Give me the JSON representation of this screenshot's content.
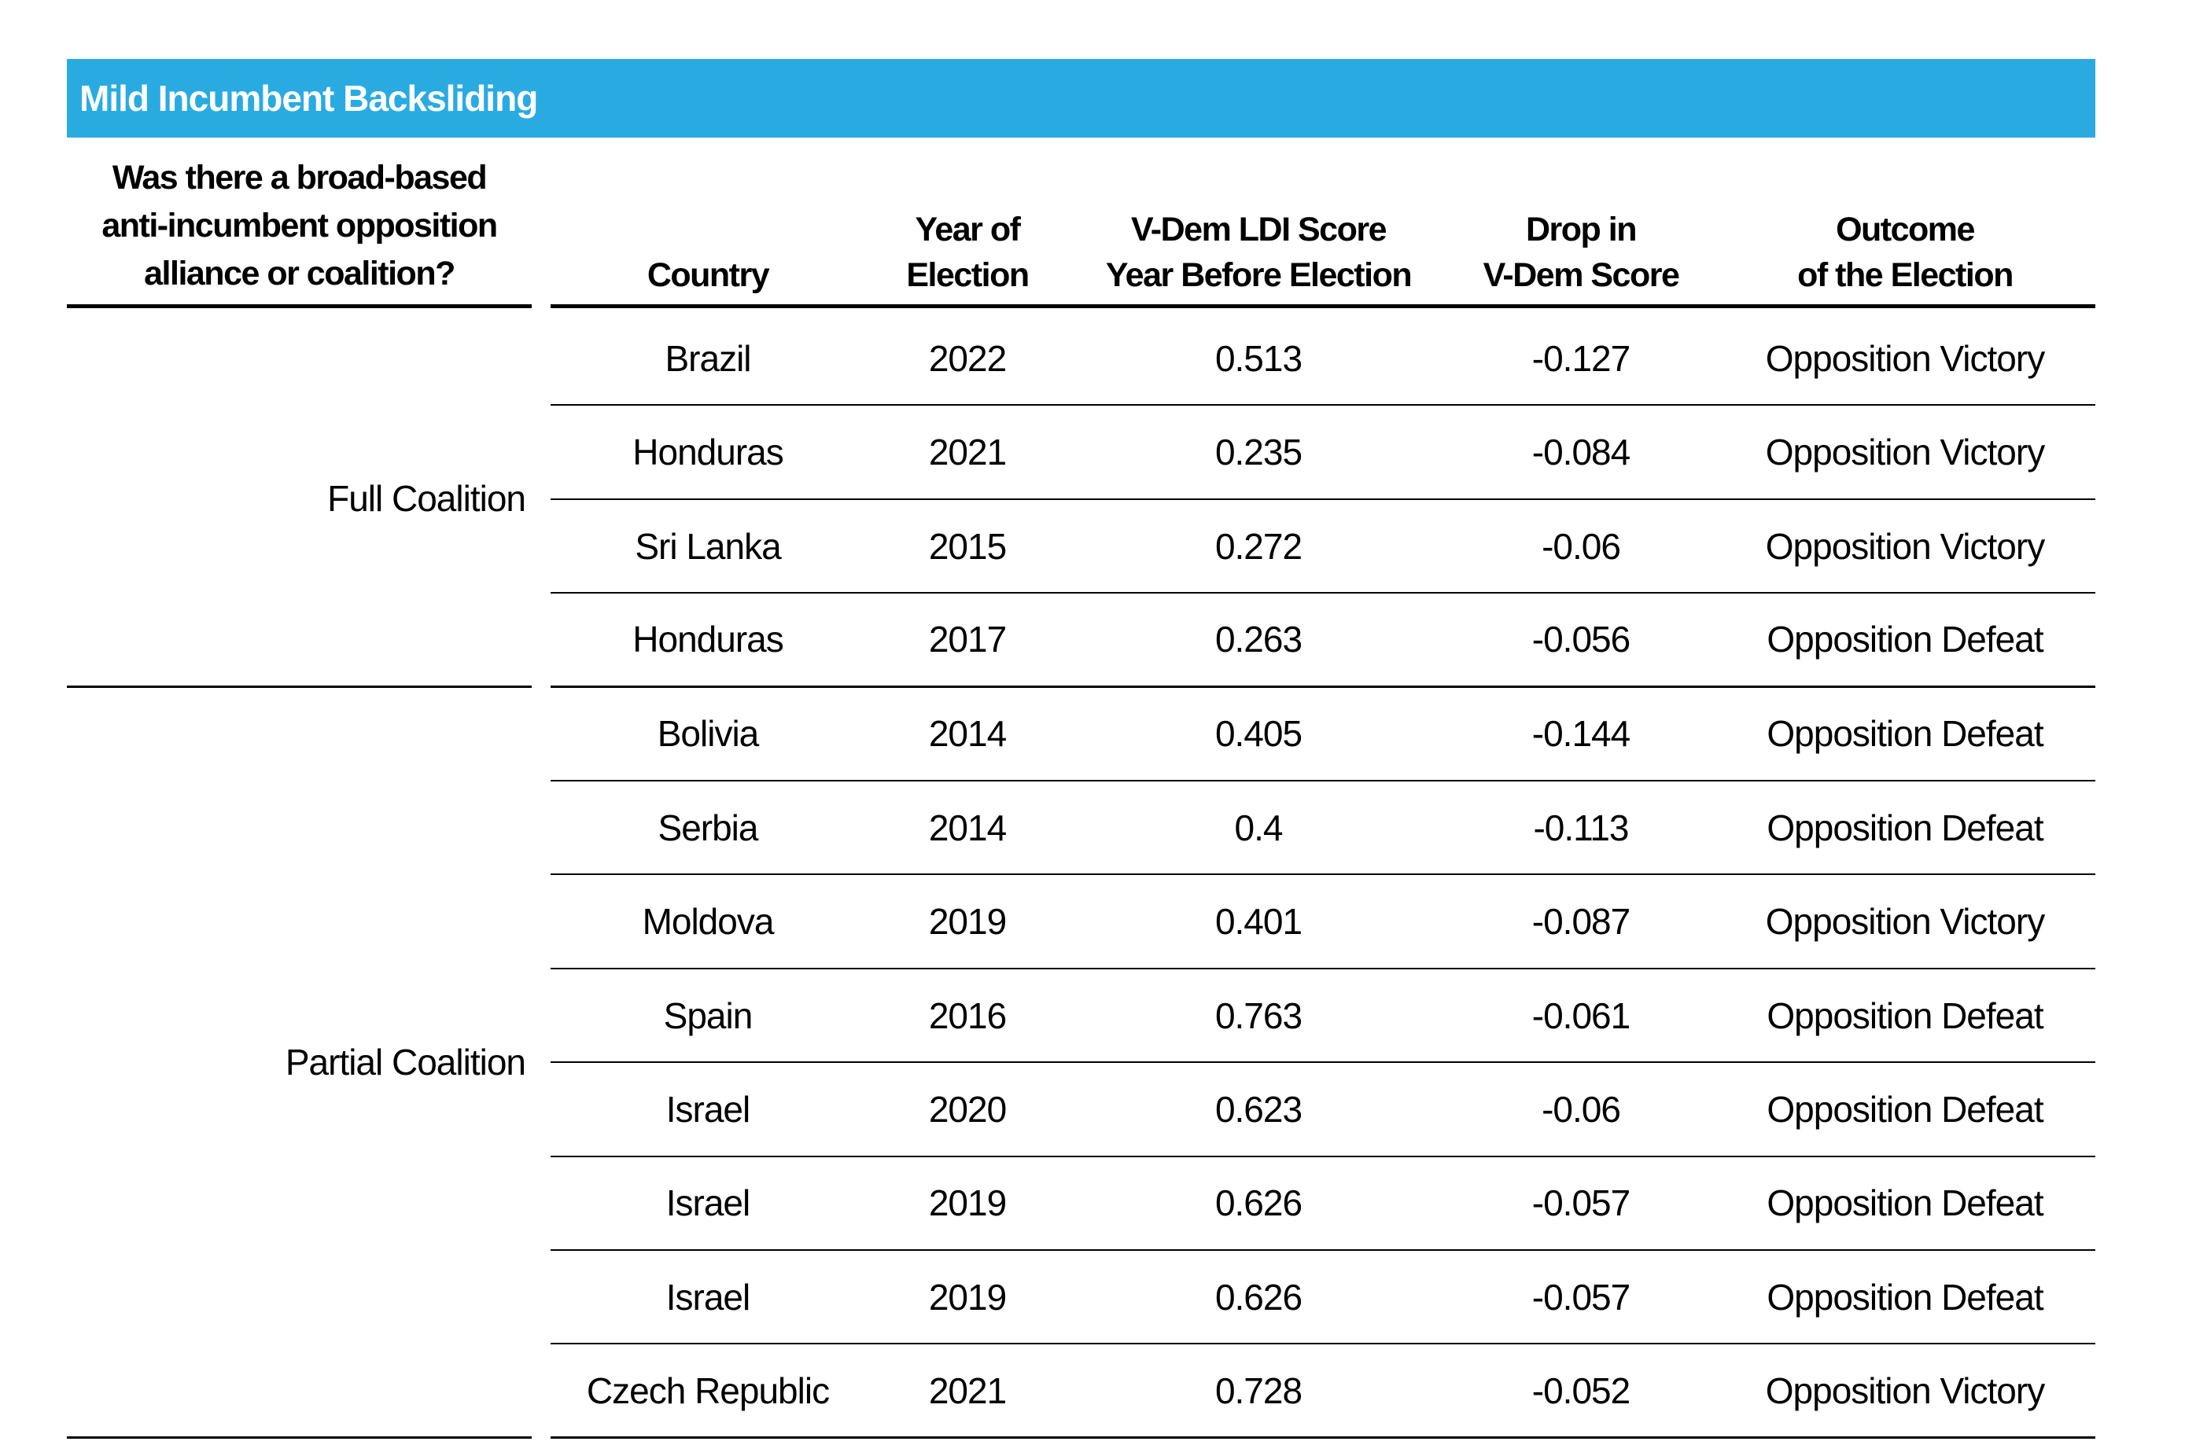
{
  "title": "Mild Incumbent Backsliding",
  "colors": {
    "header_bar_bg": "#29ABE2",
    "title_text": "#FFFFFF",
    "body_text": "#000000",
    "rule": "#000000"
  },
  "left_column": {
    "header_lines": [
      "Was there a broad-based",
      "anti-incumbent opposition",
      "alliance or coalition?"
    ],
    "groups": [
      {
        "label": "Full Coalition",
        "row_span": 4
      },
      {
        "label": "Partial Coalition",
        "row_span": 8
      }
    ]
  },
  "table": {
    "columns": [
      {
        "key": "country",
        "label_lines": [
          "Country",
          ""
        ]
      },
      {
        "key": "year",
        "label_lines": [
          "Year of",
          "Election"
        ]
      },
      {
        "key": "ldi",
        "label_lines": [
          "V-Dem LDI Score",
          "Year Before Election"
        ]
      },
      {
        "key": "drop",
        "label_lines": [
          "Drop in",
          "V-Dem Score"
        ]
      },
      {
        "key": "outcome",
        "label_lines": [
          "Outcome",
          "of the Election"
        ]
      }
    ],
    "rows": [
      {
        "group": "Full Coalition",
        "country": "Brazil",
        "year": "2022",
        "ldi": "0.513",
        "drop": "-0.127",
        "outcome": "Opposition Victory"
      },
      {
        "group": "Full Coalition",
        "country": "Honduras",
        "year": "2021",
        "ldi": "0.235",
        "drop": "-0.084",
        "outcome": "Opposition Victory"
      },
      {
        "group": "Full Coalition",
        "country": "Sri Lanka",
        "year": "2015",
        "ldi": "0.272",
        "drop": "-0.06",
        "outcome": "Opposition Victory"
      },
      {
        "group": "Full Coalition",
        "country": "Honduras",
        "year": "2017",
        "ldi": "0.263",
        "drop": "-0.056",
        "outcome": "Opposition Defeat"
      },
      {
        "group": "Partial Coalition",
        "country": "Bolivia",
        "year": "2014",
        "ldi": "0.405",
        "drop": "-0.144",
        "outcome": "Opposition Defeat"
      },
      {
        "group": "Partial Coalition",
        "country": "Serbia",
        "year": "2014",
        "ldi": "0.4",
        "drop": "-0.113",
        "outcome": "Opposition Defeat"
      },
      {
        "group": "Partial Coalition",
        "country": "Moldova",
        "year": "2019",
        "ldi": "0.401",
        "drop": "-0.087",
        "outcome": "Opposition Victory"
      },
      {
        "group": "Partial Coalition",
        "country": "Spain",
        "year": "2016",
        "ldi": "0.763",
        "drop": "-0.061",
        "outcome": "Opposition Defeat"
      },
      {
        "group": "Partial Coalition",
        "country": "Israel",
        "year": "2020",
        "ldi": "0.623",
        "drop": "-0.06",
        "outcome": "Opposition Defeat"
      },
      {
        "group": "Partial Coalition",
        "country": "Israel",
        "year": "2019",
        "ldi": "0.626",
        "drop": "-0.057",
        "outcome": "Opposition Defeat"
      },
      {
        "group": "Partial Coalition",
        "country": "Israel",
        "year": "2019",
        "ldi": "0.626",
        "drop": "-0.057",
        "outcome": "Opposition Defeat"
      },
      {
        "group": "Partial Coalition",
        "country": "Czech Republic",
        "year": "2021",
        "ldi": "0.728",
        "drop": "-0.052",
        "outcome": "Opposition Victory"
      }
    ]
  },
  "chart_data": {
    "type": "table",
    "title": "Mild Incumbent Backsliding",
    "row_group_column": "Was there a broad-based anti-incumbent opposition alliance or coalition?",
    "columns": [
      "Country",
      "Year of Election",
      "V-Dem LDI Score Year Before Election",
      "Drop in V-Dem Score",
      "Outcome of the Election"
    ],
    "groups": [
      {
        "label": "Full Coalition",
        "rows": [
          [
            "Brazil",
            2022,
            0.513,
            -0.127,
            "Opposition Victory"
          ],
          [
            "Honduras",
            2021,
            0.235,
            -0.084,
            "Opposition Victory"
          ],
          [
            "Sri Lanka",
            2015,
            0.272,
            -0.06,
            "Opposition Victory"
          ],
          [
            "Honduras",
            2017,
            0.263,
            -0.056,
            "Opposition Defeat"
          ]
        ]
      },
      {
        "label": "Partial Coalition",
        "rows": [
          [
            "Bolivia",
            2014,
            0.405,
            -0.144,
            "Opposition Defeat"
          ],
          [
            "Serbia",
            2014,
            0.4,
            -0.113,
            "Opposition Defeat"
          ],
          [
            "Moldova",
            2019,
            0.401,
            -0.087,
            "Opposition Victory"
          ],
          [
            "Spain",
            2016,
            0.763,
            -0.061,
            "Opposition Defeat"
          ],
          [
            "Israel",
            2020,
            0.623,
            -0.06,
            "Opposition Defeat"
          ],
          [
            "Israel",
            2019,
            0.626,
            -0.057,
            "Opposition Defeat"
          ],
          [
            "Israel",
            2019,
            0.626,
            -0.057,
            "Opposition Defeat"
          ],
          [
            "Czech Republic",
            2021,
            0.728,
            -0.052,
            "Opposition Victory"
          ]
        ]
      }
    ]
  }
}
